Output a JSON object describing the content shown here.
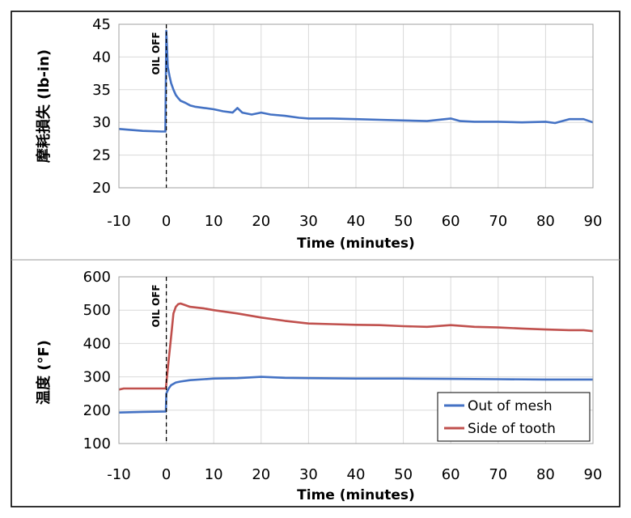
{
  "chart_data": [
    {
      "type": "line",
      "title": "",
      "xlabel": "Time (minutes)",
      "ylabel": "摩耗損失 (lb-in)",
      "xlim": [
        -10,
        90
      ],
      "ylim": [
        20,
        45
      ],
      "xticks": [
        "-10",
        "0",
        "10",
        "20",
        "30",
        "40",
        "50",
        "60",
        "70",
        "80",
        "90"
      ],
      "yticks": [
        "20",
        "25",
        "30",
        "35",
        "40",
        "45"
      ],
      "grid": true,
      "annotation": "OIL OFF",
      "marker_x": 0,
      "series": [
        {
          "color": "#4472C4",
          "x": [
            -10,
            -5,
            -1,
            -0.2,
            0,
            0.3,
            0.7,
            1,
            1.5,
            2,
            2.5,
            3,
            4,
            5,
            6,
            8,
            10,
            12,
            14,
            15,
            16,
            18,
            20,
            22,
            25,
            28,
            30,
            35,
            40,
            45,
            50,
            55,
            60,
            62,
            65,
            70,
            75,
            80,
            82,
            85,
            88,
            90
          ],
          "y": [
            29.0,
            28.7,
            28.6,
            28.6,
            44.0,
            38.5,
            37.0,
            36.0,
            35.0,
            34.2,
            33.7,
            33.3,
            33.0,
            32.6,
            32.4,
            32.2,
            32.0,
            31.7,
            31.5,
            32.2,
            31.5,
            31.2,
            31.5,
            31.2,
            31.0,
            30.7,
            30.6,
            30.6,
            30.5,
            30.4,
            30.3,
            30.2,
            30.6,
            30.2,
            30.1,
            30.1,
            30.0,
            30.1,
            29.9,
            30.5,
            30.5,
            30.0
          ]
        }
      ]
    },
    {
      "type": "line",
      "title": "",
      "xlabel": "Time (minutes)",
      "ylabel": "温度 (°F)",
      "xlim": [
        -10,
        90
      ],
      "ylim": [
        100,
        600
      ],
      "xticks": [
        "-10",
        "0",
        "10",
        "20",
        "30",
        "40",
        "50",
        "60",
        "70",
        "80",
        "90"
      ],
      "yticks": [
        "100",
        "200",
        "300",
        "400",
        "500",
        "600"
      ],
      "grid": true,
      "annotation": "OIL OFF",
      "marker_x": 0,
      "legend_position": "bottom-right",
      "series": [
        {
          "name": "Out of mesh",
          "color": "#4472C4",
          "x": [
            -10,
            -5,
            -0.1,
            0,
            0.5,
            1,
            2,
            3,
            5,
            8,
            10,
            15,
            20,
            25,
            30,
            40,
            50,
            60,
            70,
            80,
            90
          ],
          "y": [
            193,
            195,
            196,
            250,
            265,
            275,
            283,
            286,
            290,
            293,
            295,
            296,
            300,
            297,
            296,
            295,
            295,
            294,
            293,
            292,
            292
          ]
        },
        {
          "name": "Side of tooth",
          "color": "#C0504D",
          "x": [
            -10,
            -9,
            -5,
            -0.1,
            0,
            0.5,
            1,
            1.5,
            2,
            2.5,
            3,
            4,
            5,
            8,
            10,
            15,
            20,
            25,
            30,
            35,
            40,
            45,
            50,
            55,
            60,
            65,
            70,
            75,
            80,
            85,
            88,
            90
          ],
          "y": [
            262,
            265,
            265,
            265,
            280,
            350,
            420,
            490,
            510,
            518,
            520,
            515,
            510,
            505,
            500,
            490,
            478,
            468,
            460,
            458,
            456,
            455,
            452,
            450,
            455,
            450,
            448,
            445,
            442,
            440,
            440,
            437
          ]
        }
      ]
    }
  ]
}
